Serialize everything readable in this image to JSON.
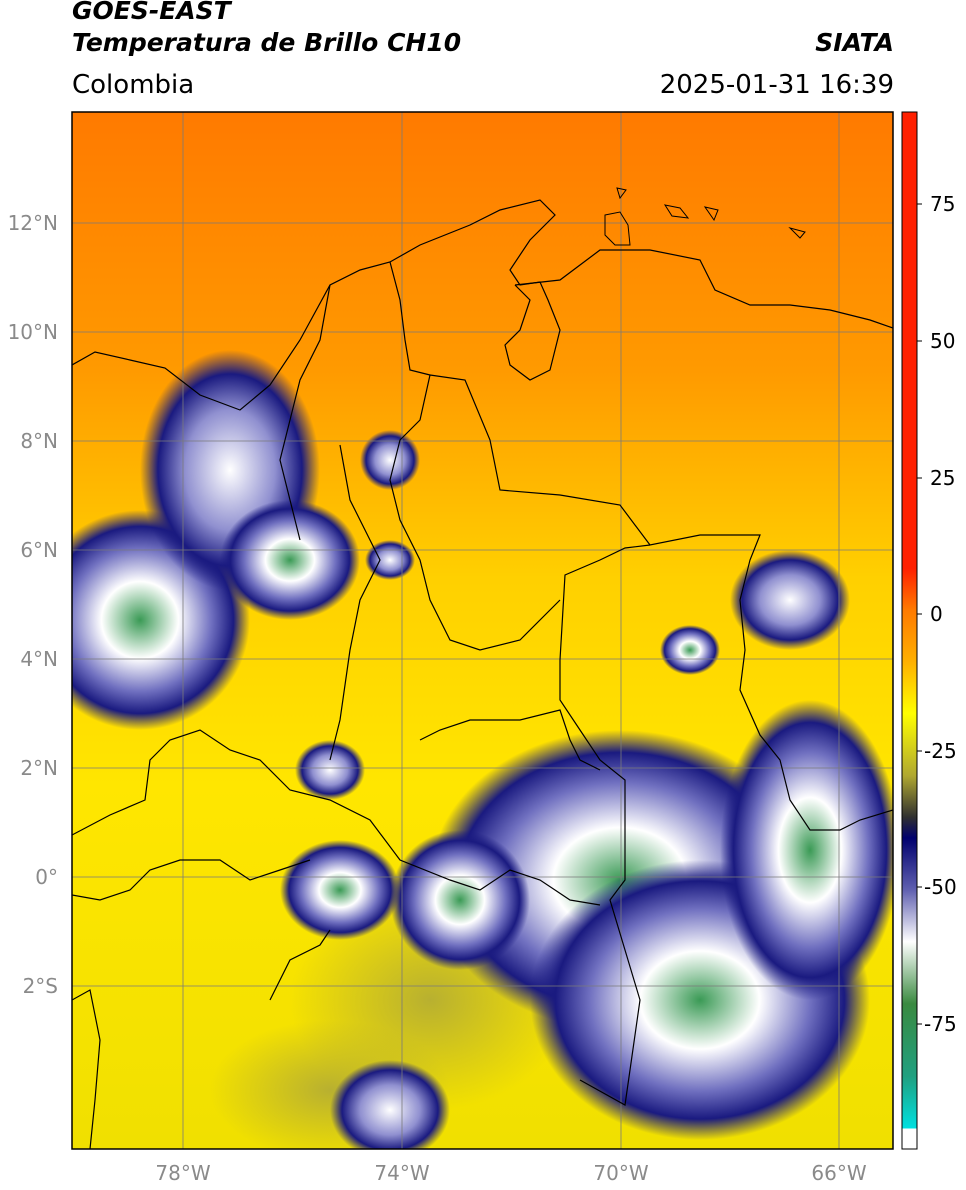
{
  "header": {
    "satellite": "GOES-EAST",
    "product": "Temperatura de Brillo CH10",
    "source": "SIATA",
    "region": "Colombia",
    "datetime": "2025-01-31 16:39"
  },
  "map": {
    "lat_labels": [
      "12°N",
      "10°N",
      "8°N",
      "6°N",
      "4°N",
      "2°N",
      "0°",
      "2°S"
    ],
    "lon_labels": [
      "78°W",
      "74°W",
      "70°W",
      "66°W"
    ]
  },
  "colorbar": {
    "ticks": [
      "75",
      "50",
      "25",
      "0",
      "-25",
      "-50",
      "-75"
    ],
    "colors": {
      "warm": "#000000",
      "red": "#e00000",
      "orange": "#ff8c00",
      "yellow": "#ffff00",
      "olive": "#8a8a40",
      "navy": "#00006e",
      "white": "#ffffff",
      "green": "#2e8b3e",
      "cyan": "#00e0e0"
    }
  }
}
